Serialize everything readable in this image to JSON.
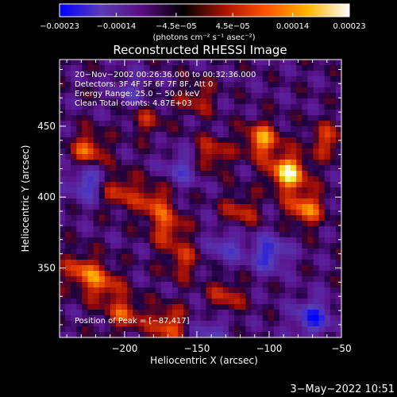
{
  "chart_data": {
    "type": "heatmap",
    "title": "Reconstructed RHESSI Image",
    "xlabel": "Heliocentric X (arcsec)",
    "ylabel": "Heliocentric Y (arcsec)",
    "xlim": [
      -245,
      -50
    ],
    "ylim": [
      301,
      497
    ],
    "x_ticks": [
      -200,
      -150,
      -100,
      -50
    ],
    "x_tick_labels": [
      "−200",
      "−150",
      "−100",
      "−50"
    ],
    "y_ticks": [
      350,
      400,
      450
    ],
    "y_tick_labels": [
      "350",
      "400",
      "450"
    ],
    "colorbar": {
      "range": [
        -0.00023,
        0.00023
      ],
      "ticks": [
        -0.00023,
        -0.00014,
        -4.5e-05,
        4.5e-05,
        0.00014,
        0.00023
      ],
      "tick_labels": [
        "−0.00023",
        "−0.00014",
        "−4.5e−05",
        "4.5e−05",
        "0.00014",
        "0.00023"
      ],
      "unit_label": "(photons cm⁻² s⁻¹ asec⁻²)",
      "colors": [
        "#0000ff",
        "#5a3cb4",
        "#5a0c82",
        "#000000",
        "#aa1400",
        "#ff5500",
        "#ffb400",
        "#ffffff"
      ]
    },
    "annotations": [
      "20−Nov−2002 00:26:36.000 to 00:32:36.000",
      "Detectors: 3F 4F 5F 6F 7F 8F, Att 0",
      "Energy Range: 25.0 − 50.0 keV",
      "Clean    Total counts: 4.87E+03"
    ],
    "peak_label": "Position of Peak = [−87,417]",
    "peak": [
      -87,
      417
    ],
    "hot_spots": [
      {
        "x": -87,
        "y": 417,
        "value": 0.00023
      },
      {
        "x": -105,
        "y": 440,
        "value": 0.00017
      },
      {
        "x": -75,
        "y": 392,
        "value": 0.00016
      },
      {
        "x": -225,
        "y": 433,
        "value": 0.00014
      },
      {
        "x": -205,
        "y": 405,
        "value": 0.00012
      },
      {
        "x": -180,
        "y": 397,
        "value": 0.00012
      },
      {
        "x": -140,
        "y": 430,
        "value": 0.00011
      },
      {
        "x": -170,
        "y": 378,
        "value": 0.00012
      },
      {
        "x": -160,
        "y": 355,
        "value": 0.0001
      },
      {
        "x": -230,
        "y": 348,
        "value": 0.00013
      },
      {
        "x": -215,
        "y": 338,
        "value": 0.00012
      },
      {
        "x": -200,
        "y": 318,
        "value": 0.00012
      },
      {
        "x": -170,
        "y": 310,
        "value": 0.00014
      },
      {
        "x": -130,
        "y": 330,
        "value": 0.0001
      },
      {
        "x": -120,
        "y": 390,
        "value": 0.0001
      },
      {
        "x": -60,
        "y": 440,
        "value": 0.00011
      },
      {
        "x": -150,
        "y": 470,
        "value": 9e-05
      },
      {
        "x": -185,
        "y": 455,
        "value": 8e-05
      }
    ],
    "cold_spots": [
      {
        "x": -225,
        "y": 410,
        "value": -0.00014
      },
      {
        "x": -100,
        "y": 360,
        "value": -0.00015
      },
      {
        "x": -70,
        "y": 315,
        "value": -0.00016
      },
      {
        "x": -160,
        "y": 420,
        "value": -0.0001
      },
      {
        "x": -195,
        "y": 475,
        "value": -8e-05
      },
      {
        "x": -130,
        "y": 365,
        "value": -0.0001
      },
      {
        "x": -140,
        "y": 305,
        "value": -9e-05
      }
    ]
  },
  "footer": {
    "date": "3−May−2022 10:51"
  }
}
